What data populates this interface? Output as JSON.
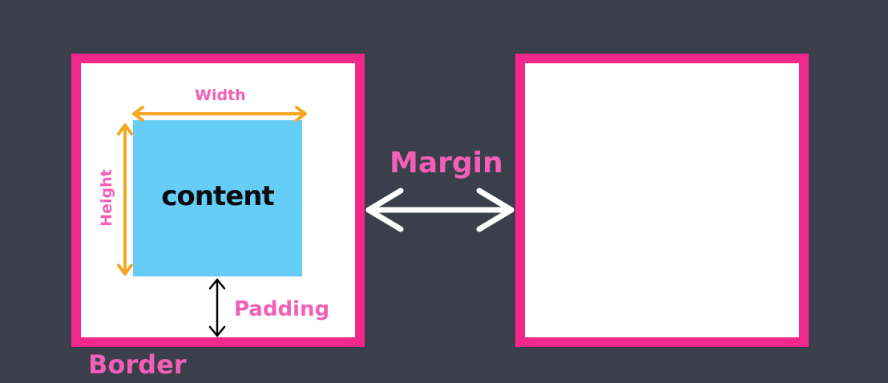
{
  "diagram": {
    "content_label": "content",
    "width_label": "Width",
    "height_label": "Height",
    "padding_label": "Padding",
    "margin_label": "Margin",
    "border_label": "Border"
  },
  "colors": {
    "background": "#3a3f4b",
    "border": "#f0288c",
    "content": "#66cdf7",
    "label_pink": "#f35fb7",
    "arrow_orange": "#f5a623",
    "arrow_white": "#ffffff",
    "arrow_black": "#000000"
  }
}
